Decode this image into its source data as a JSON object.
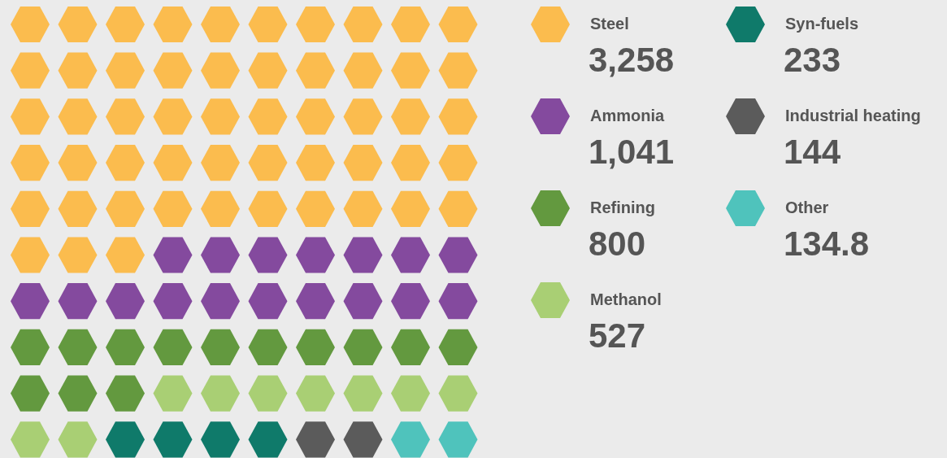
{
  "chart_data": {
    "type": "other",
    "categories": [
      "Steel",
      "Ammonia",
      "Refining",
      "Methanol",
      "Syn-fuels",
      "Industrial heating",
      "Other"
    ],
    "values": [
      3258,
      1041,
      800,
      527,
      233,
      144,
      134.8
    ],
    "colors": [
      "#fbbc4e",
      "#844a9e",
      "#63993f",
      "#a9cf74",
      "#0f7a6a",
      "#5b5b5b",
      "#4fc3bc"
    ],
    "value_labels": [
      "3,258",
      "1,041",
      "800",
      "527",
      "233",
      "144",
      "134.8"
    ]
  }
}
